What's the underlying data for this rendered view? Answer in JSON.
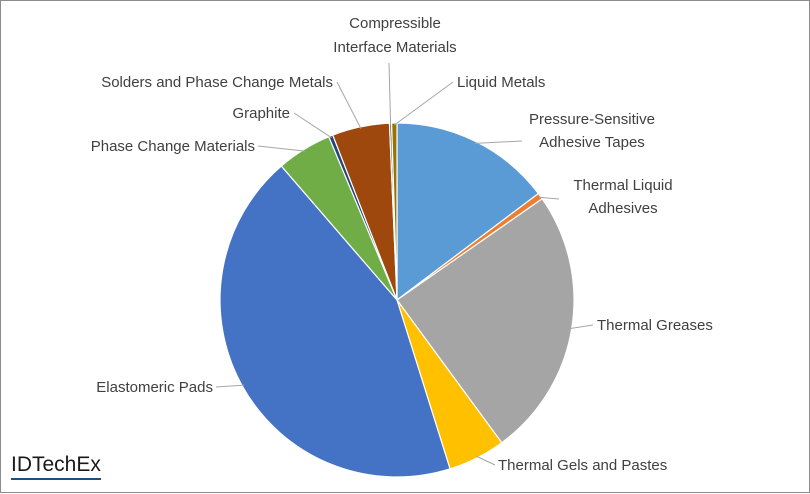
{
  "brand": {
    "name": "IDTechEx"
  },
  "chart_data": {
    "type": "pie",
    "title": "",
    "unit": "%",
    "start_angle_deg": 0,
    "direction": "clockwise",
    "slices": [
      {
        "label": "Pressure-Sensitive Adhesive Tapes",
        "value": 15.2,
        "color": "#5b9bd5"
      },
      {
        "label": "Thermal Liquid Adhesives",
        "value": 0.6,
        "color": "#ed7d31"
      },
      {
        "label": "Thermal Greases",
        "value": 25.4,
        "color": "#a5a5a5"
      },
      {
        "label": "Thermal Gels and Pastes",
        "value": 5.4,
        "color": "#ffc000"
      },
      {
        "label": "Elastomeric Pads",
        "value": 44.9,
        "color": "#4472c4"
      },
      {
        "label": "Phase Change Materials",
        "value": 5.2,
        "color": "#70ad47"
      },
      {
        "label": "Graphite",
        "value": 0.4,
        "color": "#264478"
      },
      {
        "label": "Solders and Phase Change Metals",
        "value": 5.4,
        "color": "#9e480e"
      },
      {
        "label": "Compressible Interface Materials",
        "value": 0.2,
        "color": "#636363"
      },
      {
        "label": "Liquid Metals",
        "value": 0.5,
        "color": "#997300"
      }
    ]
  }
}
